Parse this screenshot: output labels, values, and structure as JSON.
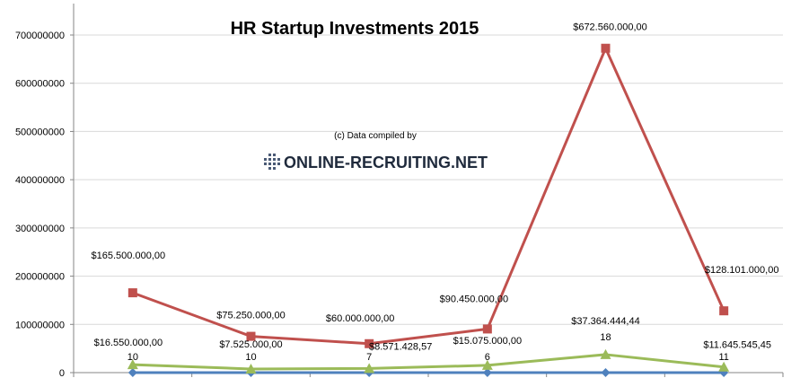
{
  "chart_data": {
    "type": "line",
    "title": "HR Startup Investments 2015",
    "credit_text": "(c) Data compiled by",
    "logo_text": "ONLINE-RECRUITING.NET",
    "xlabel": "",
    "ylabel": "",
    "ylim": [
      0,
      700000000
    ],
    "yticks": [
      0,
      100000000,
      200000000,
      300000000,
      400000000,
      500000000,
      600000000,
      700000000
    ],
    "ytick_labels": [
      "0",
      "100000000",
      "200000000",
      "300000000",
      "400000000",
      "500000000",
      "600000000",
      "700000000"
    ],
    "grid": true,
    "colors": {
      "total": "#c0504d",
      "average": "#9bbb59",
      "count": "#4f81bd",
      "grid": "#d9d9d9",
      "axis": "#868686"
    },
    "series": [
      {
        "values": [
          165500000,
          75250000,
          60000000,
          90450000,
          672560000,
          128101000
        ],
        "labels": [
          "$165.500.000,00",
          "$75.250.000,00",
          "$60.000.000,00",
          "$90.450.000,00",
          "$672.560.000,00",
          "$128.101.000,00"
        ]
      },
      {
        "values": [
          16550000,
          7525000,
          8571428.57,
          15075000,
          37364444.44,
          11645545.45
        ],
        "labels": [
          "$16.550.000,00",
          "$7.525.000,00",
          "$8.571.428,57",
          "$15.075.000,00",
          "$37.364.444,44",
          "$11.645.545,45"
        ]
      },
      {
        "values": [
          10,
          10,
          7,
          6,
          18,
          11
        ],
        "labels": [
          "10",
          "10",
          "7",
          "6",
          "18",
          "11"
        ]
      }
    ]
  }
}
